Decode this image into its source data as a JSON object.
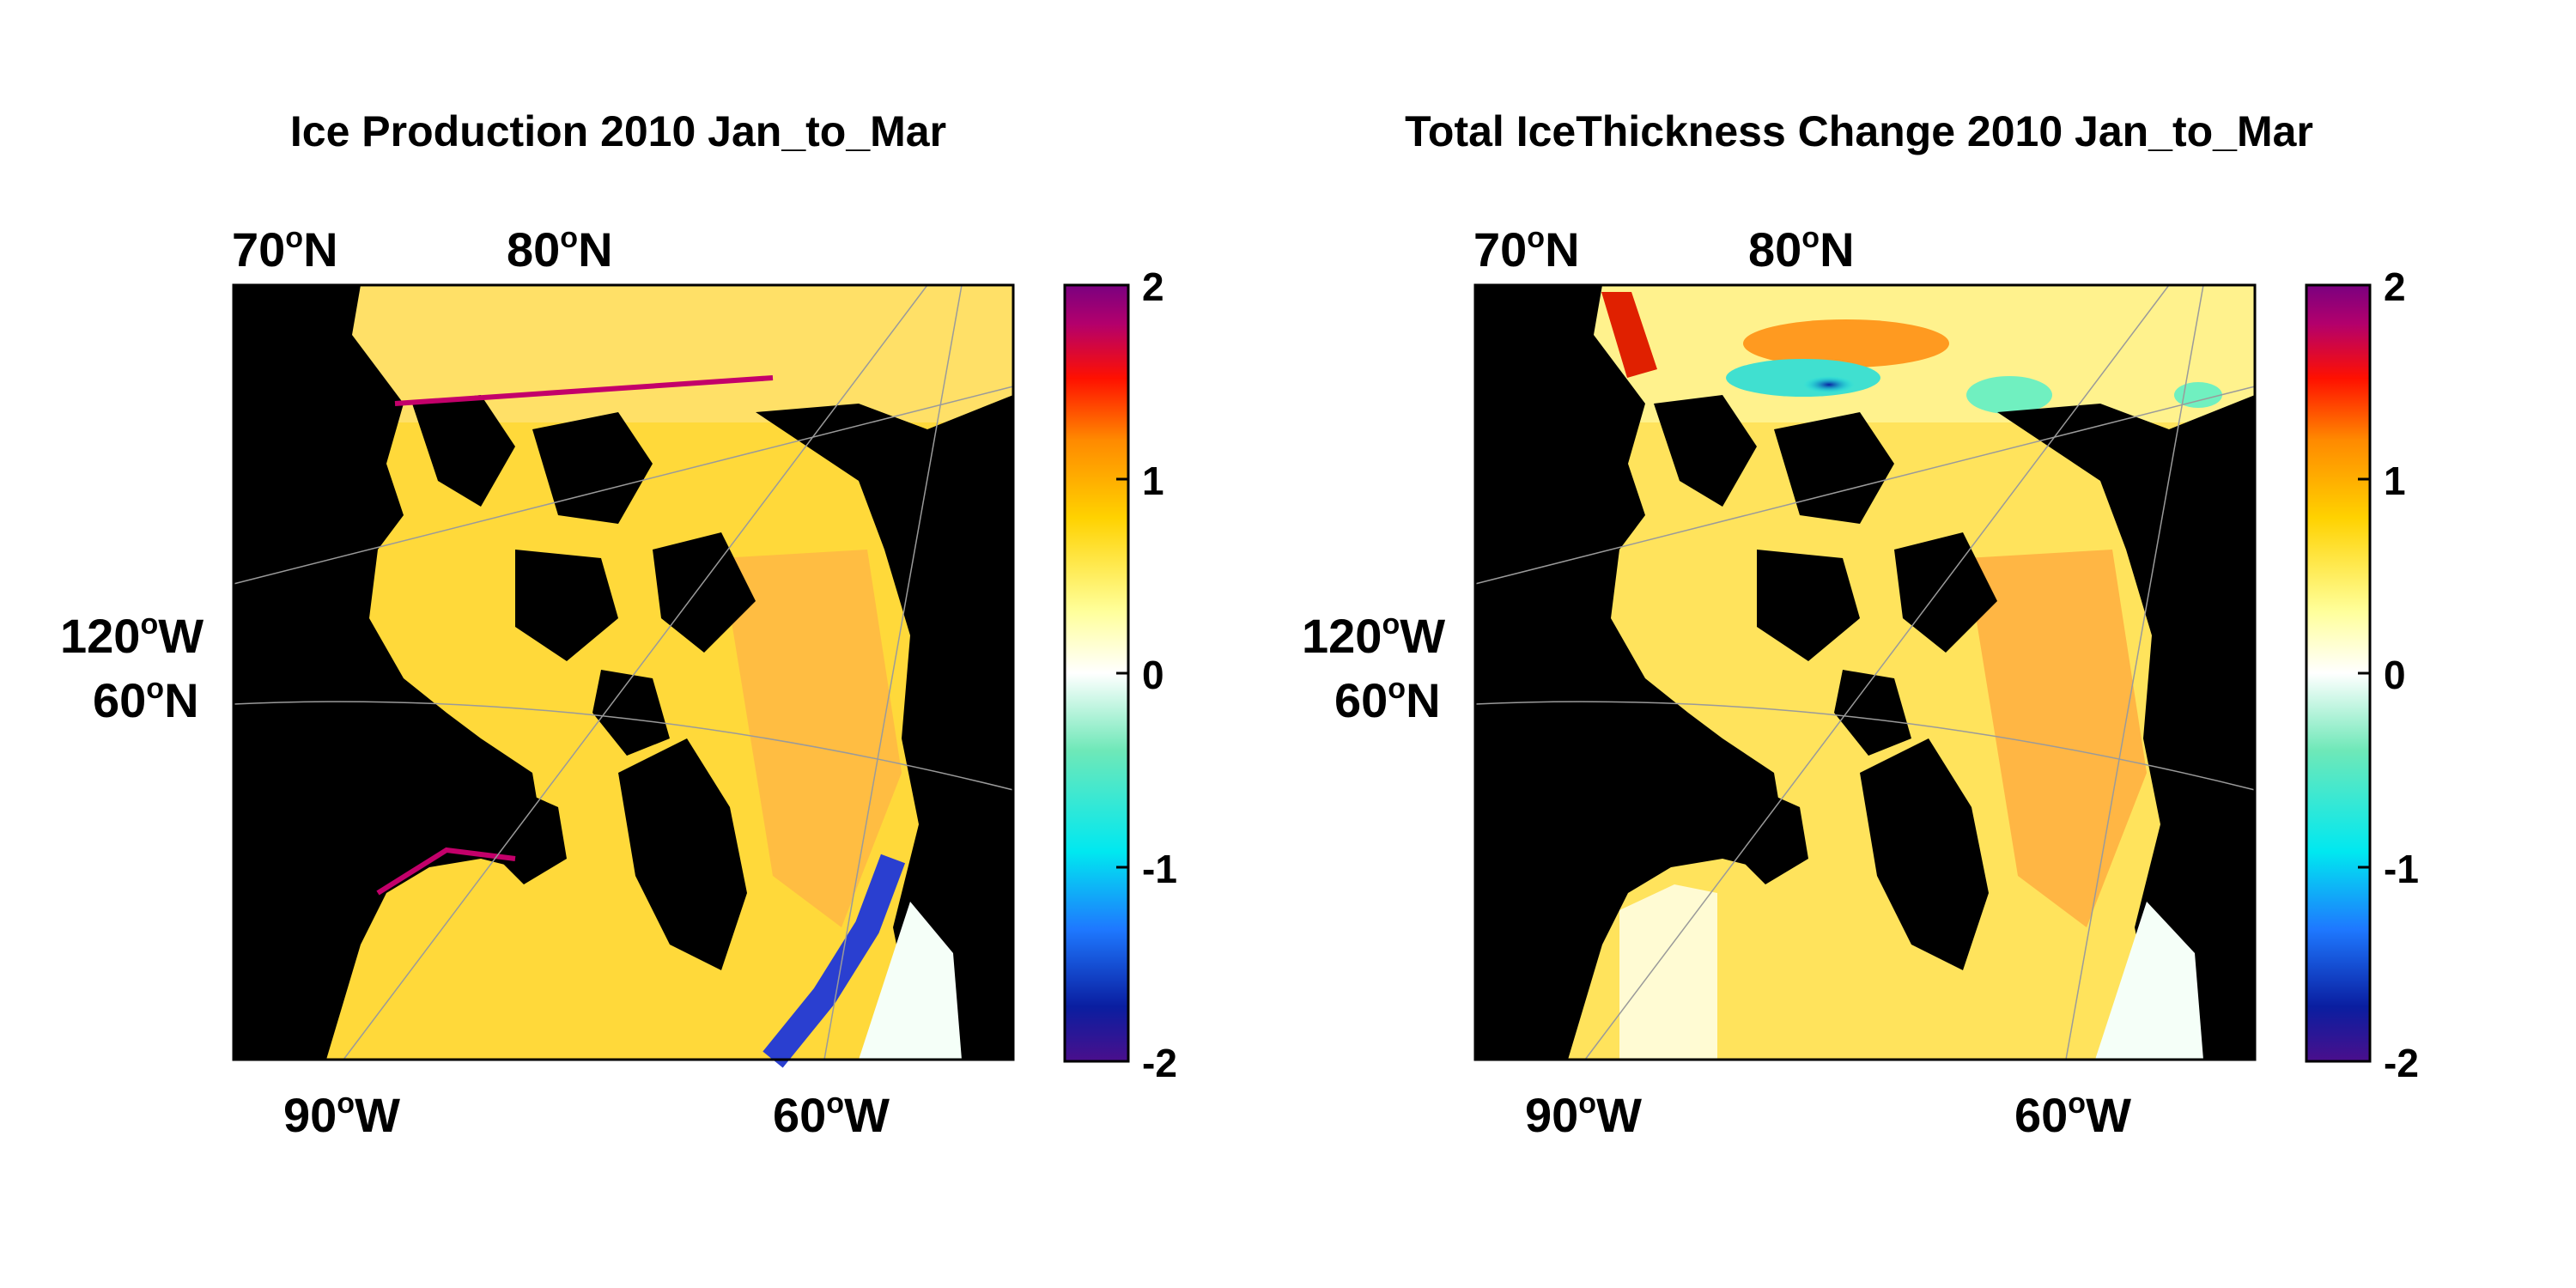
{
  "panels": [
    {
      "title": "Ice Production 2010 Jan_to_Mar",
      "geo_labels": {
        "lat70": {
          "deg": "70",
          "sup": "o",
          "dir": "N"
        },
        "lat80": {
          "deg": "80",
          "sup": "o",
          "dir": "N"
        },
        "lon120": {
          "deg": "120",
          "sup": "o",
          "dir": "W"
        },
        "lat60": {
          "deg": "60",
          "sup": "o",
          "dir": "N"
        },
        "lon90": {
          "deg": "90",
          "sup": "o",
          "dir": "W"
        },
        "lon60": {
          "deg": "60",
          "sup": "o",
          "dir": "W"
        }
      },
      "colorbar_ticks": [
        "2",
        "1",
        "0",
        "-1",
        "-2"
      ]
    },
    {
      "title": "Total IceThickness Change 2010 Jan_to_Mar",
      "geo_labels": {
        "lat70": {
          "deg": "70",
          "sup": "o",
          "dir": "N"
        },
        "lat80": {
          "deg": "80",
          "sup": "o",
          "dir": "N"
        },
        "lon120": {
          "deg": "120",
          "sup": "o",
          "dir": "W"
        },
        "lat60": {
          "deg": "60",
          "sup": "o",
          "dir": "N"
        },
        "lon90": {
          "deg": "90",
          "sup": "o",
          "dir": "W"
        },
        "lon60": {
          "deg": "60",
          "sup": "o",
          "dir": "W"
        }
      },
      "colorbar_ticks": [
        "2",
        "1",
        "0",
        "-1",
        "-2"
      ]
    }
  ],
  "colormap": [
    "#4a0f8c",
    "#0a1ea0",
    "#1e78ff",
    "#00e8f0",
    "#6ee8b8",
    "#ffffff",
    "#ffff9a",
    "#ffd200",
    "#ff8a00",
    "#ff1000",
    "#b3006c",
    "#7a0080"
  ],
  "land_color": "#000000"
}
